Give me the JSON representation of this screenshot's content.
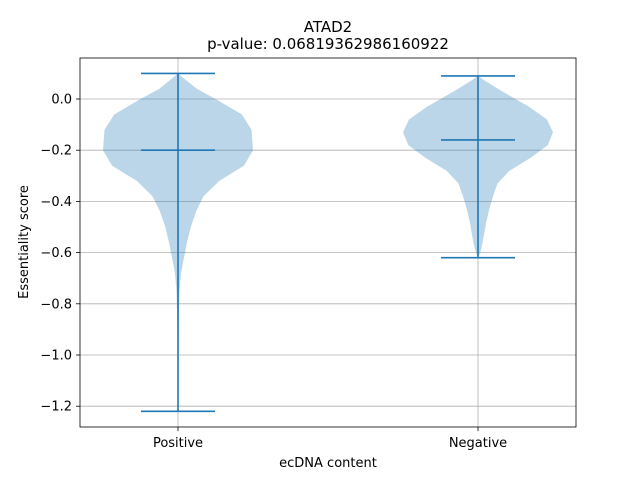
{
  "chart_data": {
    "type": "violin",
    "title": "ATAD2",
    "subtitle": "p-value: 0.06819362986160922",
    "xlabel": "ecDNA content",
    "ylabel": "Essentiality score",
    "categories": [
      "Positive",
      "Negative"
    ],
    "ylim": [
      -1.28,
      0.15
    ],
    "yticks": [
      0.0,
      -0.2,
      -0.4,
      -0.6,
      -0.8,
      -1.0,
      -1.2
    ],
    "ytick_labels": [
      "0.0",
      "−0.2",
      "−0.4",
      "−0.6",
      "−0.8",
      "−1.0",
      "−1.2"
    ],
    "grid": true,
    "violins": [
      {
        "category": "Positive",
        "max": 0.1,
        "min": -1.22,
        "median": -0.2,
        "density_profile": [
          [
            0.1,
            0.0
          ],
          [
            0.08,
            0.08
          ],
          [
            0.04,
            0.25
          ],
          [
            0.0,
            0.5
          ],
          [
            -0.06,
            0.85
          ],
          [
            -0.12,
            0.98
          ],
          [
            -0.2,
            1.0
          ],
          [
            -0.26,
            0.88
          ],
          [
            -0.32,
            0.55
          ],
          [
            -0.38,
            0.34
          ],
          [
            -0.44,
            0.24
          ],
          [
            -0.5,
            0.17
          ],
          [
            -0.56,
            0.12
          ],
          [
            -0.62,
            0.08
          ],
          [
            -0.68,
            0.04
          ],
          [
            -0.75,
            0.02
          ],
          [
            -0.9,
            0.008
          ],
          [
            -1.1,
            0.005
          ],
          [
            -1.22,
            0.0
          ]
        ]
      },
      {
        "category": "Negative",
        "max": 0.09,
        "min": -0.62,
        "median": -0.16,
        "density_profile": [
          [
            0.09,
            0.0
          ],
          [
            0.07,
            0.1
          ],
          [
            0.03,
            0.32
          ],
          [
            -0.03,
            0.68
          ],
          [
            -0.08,
            0.92
          ],
          [
            -0.13,
            1.0
          ],
          [
            -0.18,
            0.93
          ],
          [
            -0.23,
            0.7
          ],
          [
            -0.28,
            0.42
          ],
          [
            -0.33,
            0.26
          ],
          [
            -0.38,
            0.2
          ],
          [
            -0.43,
            0.15
          ],
          [
            -0.48,
            0.11
          ],
          [
            -0.53,
            0.08
          ],
          [
            -0.57,
            0.055
          ],
          [
            -0.6,
            0.03
          ],
          [
            -0.62,
            0.0
          ]
        ]
      }
    ],
    "colors": {
      "body": "#1f77b4",
      "body_opacity": 0.3,
      "lines": "#1f77b4",
      "grid": "#b0b0b0",
      "axes": "#000000"
    }
  }
}
